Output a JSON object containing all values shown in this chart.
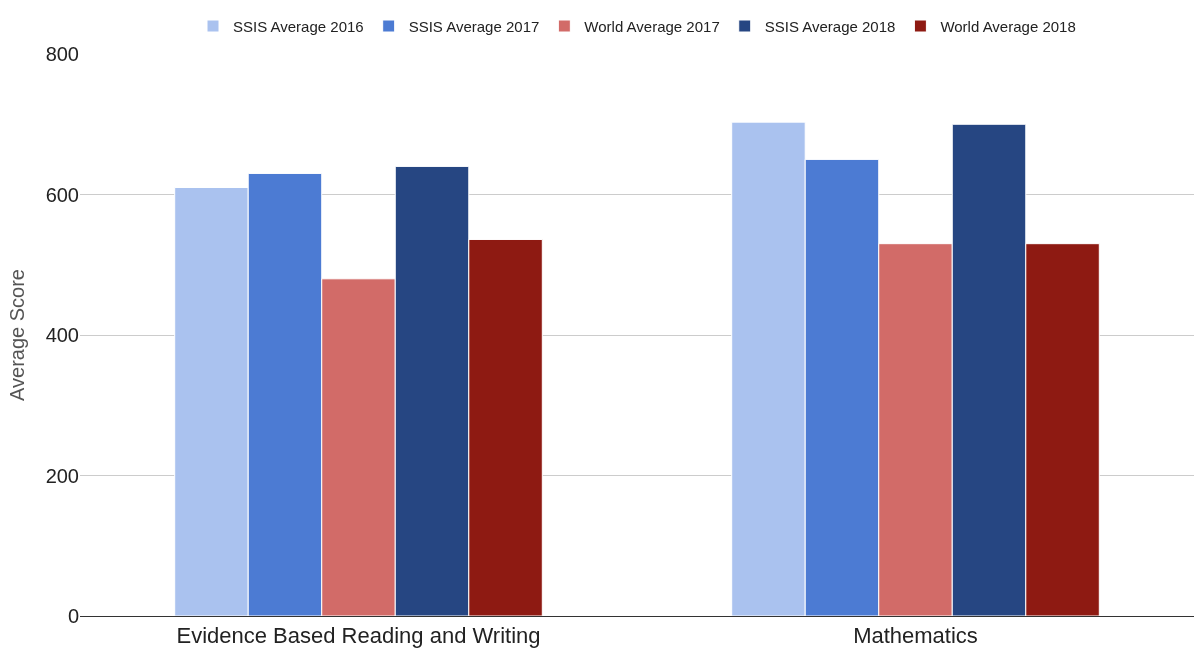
{
  "chart_data": {
    "type": "bar",
    "ylabel": "Average Score",
    "categories": [
      "Evidence Based Reading and Writing",
      "Mathematics"
    ],
    "series": [
      {
        "name": "SSIS Average 2016",
        "color": "#aac2ef",
        "values": [
          610,
          703
        ]
      },
      {
        "name": "SSIS Average 2017",
        "color": "#4c7bd3",
        "values": [
          630,
          650
        ]
      },
      {
        "name": "World Average 2017",
        "color": "#d26b68",
        "values": [
          480,
          530
        ]
      },
      {
        "name": "SSIS Average 2018",
        "color": "#264682",
        "values": [
          640,
          700
        ]
      },
      {
        "name": "World Average 2018",
        "color": "#8e1a12",
        "values": [
          536,
          530
        ]
      }
    ],
    "ylim": [
      0,
      800
    ],
    "yticks": [
      0,
      200,
      400,
      600,
      800
    ],
    "grid": "y",
    "legend": "top"
  }
}
